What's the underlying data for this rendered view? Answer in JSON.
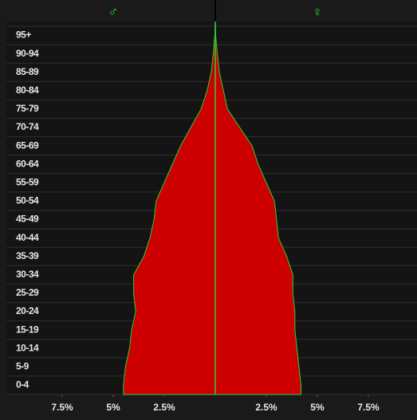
{
  "chart_data": {
    "type": "pyramid",
    "categories": [
      "0-4",
      "5-9",
      "10-14",
      "15-19",
      "20-24",
      "25-29",
      "30-34",
      "35-39",
      "40-44",
      "45-49",
      "50-54",
      "55-59",
      "60-64",
      "65-69",
      "70-74",
      "75-79",
      "80-84",
      "85-89",
      "90-94",
      "95+"
    ],
    "series": [
      {
        "name": "♂",
        "side": "left",
        "color": "#cc0000",
        "values": [
          4.5,
          4.4,
          4.2,
          4.1,
          3.9,
          4.0,
          4.0,
          3.5,
          3.2,
          3.0,
          2.9,
          2.5,
          2.1,
          1.7,
          1.2,
          0.7,
          0.4,
          0.2,
          0.1,
          0.02
        ]
      },
      {
        "name": "♀",
        "side": "right",
        "color": "#cc0000",
        "values": [
          4.2,
          4.1,
          4.0,
          3.9,
          3.9,
          3.8,
          3.8,
          3.5,
          3.1,
          3.0,
          2.9,
          2.5,
          2.1,
          1.8,
          1.2,
          0.6,
          0.4,
          0.2,
          0.1,
          0.02
        ]
      }
    ],
    "outline_color": "#33cc33",
    "xlim": [
      -10,
      10
    ],
    "xticks": [
      {
        "value": -7.5,
        "label": "7.5%"
      },
      {
        "value": -5,
        "label": "5%"
      },
      {
        "value": -2.5,
        "label": "2.5%"
      },
      {
        "value": 2.5,
        "label": "2.5%"
      },
      {
        "value": 5,
        "label": "5%"
      },
      {
        "value": 7.5,
        "label": "7.5%"
      }
    ]
  }
}
